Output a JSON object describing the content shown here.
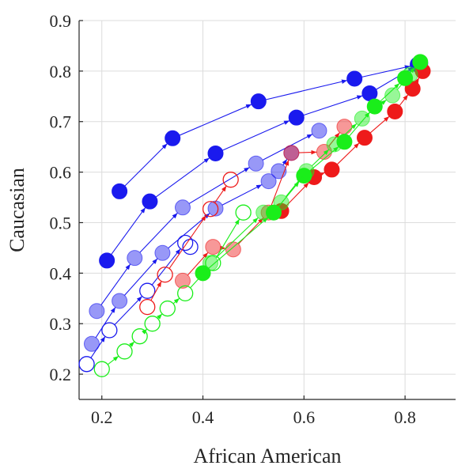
{
  "chart_data": {
    "type": "scatter",
    "title": "",
    "xlabel": "African American",
    "ylabel": "Caucasian",
    "xlim": [
      0.155,
      0.9
    ],
    "ylim": [
      0.15,
      0.9
    ],
    "xticks": [
      0.2,
      0.4,
      0.6,
      0.8
    ],
    "xtick_labels": [
      "0.2",
      "0.4",
      "0.6",
      "0.8"
    ],
    "yticks": [
      0.2,
      0.3,
      0.4,
      0.5,
      0.6,
      0.7,
      0.8,
      0.9
    ],
    "ytick_labels": [
      "0.2",
      "0.3",
      "0.4",
      "0.5",
      "0.6",
      "0.7",
      "0.8",
      "0.9"
    ],
    "grid": true,
    "legend": "none",
    "colors": {
      "blue": "#1a1aee",
      "red": "#ee1a1a",
      "green": "#1aee1a"
    },
    "series": [
      {
        "color": "blue",
        "style": "filled",
        "points": [
          [
            0.235,
            0.562
          ],
          [
            0.34,
            0.667
          ],
          [
            0.51,
            0.74
          ],
          [
            0.7,
            0.785
          ],
          [
            0.825,
            0.813
          ]
        ]
      },
      {
        "color": "blue",
        "style": "filled",
        "points": [
          [
            0.21,
            0.425
          ],
          [
            0.295,
            0.542
          ],
          [
            0.425,
            0.637
          ],
          [
            0.585,
            0.708
          ],
          [
            0.73,
            0.756
          ],
          [
            0.83,
            0.815
          ]
        ]
      },
      {
        "color": "blue",
        "style": "light",
        "points": [
          [
            0.19,
            0.325
          ],
          [
            0.265,
            0.43
          ],
          [
            0.36,
            0.53
          ],
          [
            0.505,
            0.617
          ],
          [
            0.63,
            0.682
          ]
        ]
      },
      {
        "color": "blue",
        "style": "light",
        "points": [
          [
            0.18,
            0.26
          ],
          [
            0.235,
            0.345
          ],
          [
            0.32,
            0.44
          ],
          [
            0.425,
            0.528
          ],
          [
            0.53,
            0.582
          ],
          [
            0.55,
            0.602
          ],
          [
            0.575,
            0.638
          ]
        ]
      },
      {
        "color": "blue",
        "style": "open",
        "points": [
          [
            0.17,
            0.22
          ],
          [
            0.215,
            0.287
          ],
          [
            0.29,
            0.365
          ],
          [
            0.365,
            0.46
          ],
          [
            0.375,
            0.452
          ]
        ]
      },
      {
        "color": "red",
        "style": "filled",
        "points": [
          [
            0.555,
            0.523
          ],
          [
            0.62,
            0.59
          ],
          [
            0.655,
            0.605
          ],
          [
            0.72,
            0.668
          ],
          [
            0.78,
            0.72
          ],
          [
            0.815,
            0.765
          ],
          [
            0.835,
            0.8
          ]
        ]
      },
      {
        "color": "red",
        "style": "light",
        "points": [
          [
            0.36,
            0.385
          ],
          [
            0.42,
            0.452
          ],
          [
            0.46,
            0.447
          ],
          [
            0.53,
            0.52
          ],
          [
            0.575,
            0.638
          ],
          [
            0.64,
            0.64
          ],
          [
            0.68,
            0.69
          ]
        ]
      },
      {
        "color": "red",
        "style": "open",
        "points": [
          [
            0.29,
            0.333
          ],
          [
            0.325,
            0.397
          ],
          [
            0.415,
            0.527
          ],
          [
            0.455,
            0.585
          ]
        ]
      },
      {
        "color": "green",
        "style": "filled",
        "points": [
          [
            0.4,
            0.4
          ],
          [
            0.54,
            0.52
          ],
          [
            0.6,
            0.593
          ],
          [
            0.68,
            0.66
          ],
          [
            0.74,
            0.73
          ],
          [
            0.8,
            0.786
          ],
          [
            0.83,
            0.818
          ]
        ]
      },
      {
        "color": "green",
        "style": "light",
        "points": [
          [
            0.415,
            0.42
          ],
          [
            0.52,
            0.52
          ],
          [
            0.555,
            0.54
          ],
          [
            0.605,
            0.602
          ],
          [
            0.66,
            0.655
          ],
          [
            0.715,
            0.706
          ],
          [
            0.775,
            0.752
          ],
          [
            0.81,
            0.793
          ]
        ]
      },
      {
        "color": "green",
        "style": "open",
        "points": [
          [
            0.2,
            0.21
          ],
          [
            0.245,
            0.245
          ],
          [
            0.275,
            0.275
          ],
          [
            0.3,
            0.3
          ],
          [
            0.33,
            0.33
          ],
          [
            0.365,
            0.36
          ],
          [
            0.42,
            0.42
          ],
          [
            0.48,
            0.52
          ]
        ]
      }
    ]
  }
}
